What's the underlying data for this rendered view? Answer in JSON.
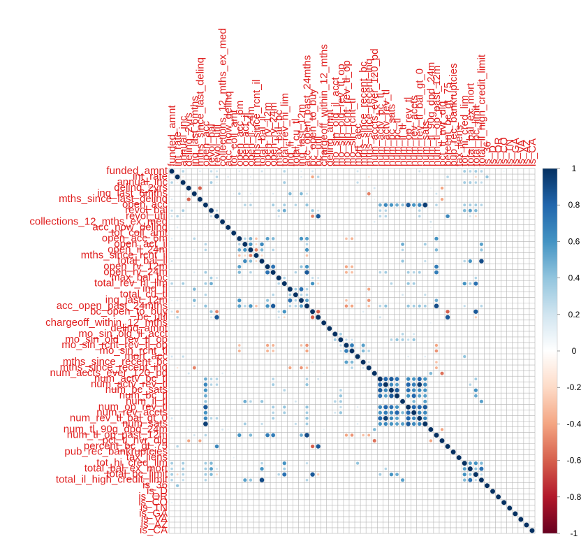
{
  "chart_data": {
    "type": "heatmap",
    "title": "",
    "variables": [
      "funded_amnt",
      "int_rate",
      "annual_inc",
      "delinq_2yrs",
      "inq_last_6mths",
      "mths_since_last_delinq",
      "open_acc",
      "revol_bal",
      "revol_util",
      "collections_12_mths_ex_med",
      "acc_now_delinq",
      "tot_coll_amt",
      "open_acc_6m",
      "open_act_il",
      "open_il_24m",
      "mths_since_rcnt_il",
      "total_bal_il",
      "open_rv_12m",
      "open_rv_24m",
      "max_bal_bc",
      "total_rev_hi_lim",
      "inq_fi",
      "total_cu_tl",
      "inq_last_12m",
      "acc_open_past_24mths",
      "bc_open_to_buy",
      "bc_util",
      "chargeoff_within_12_mths",
      "delinq_amnt",
      "mo_sin_old_il_acct",
      "mo_sin_old_rev_tl_op",
      "mo_sin_rcnt_rev_tl_op",
      "mo_sin_rcnt_tl",
      "mort_acc",
      "mths_since_recent_bc",
      "mths_since_recent_inq",
      "num_accts_ever_120_pd",
      "num_actv_bc_tl",
      "num_actv_rev_tl",
      "num_bc_sats",
      "num_bc_tl",
      "num_il_tl",
      "num_op_rev_tl",
      "num_rev_accts",
      "num_rev_tl_bal_gt_0",
      "num_sats",
      "num_tl_90g_dpd_24m",
      "num_tl_op_past_12m",
      "pct_tl_nvr_dlq",
      "percent_bc_gt_75",
      "pub_rec_bankruptcies",
      "tax_liens",
      "tot_hi_cred_lim",
      "total_bal_ex_mort",
      "total_bc_limit",
      "total_il_high_credit_limit",
      "is_36",
      "is_D",
      "is_OR",
      "is_CO",
      "is_TN",
      "is_GA",
      "is_VA",
      "is_AZ",
      "is_CA"
    ],
    "color_scale": {
      "min": -1,
      "max": 1,
      "ticks": [
        "1",
        "0.8",
        "0.6",
        "0.4",
        "0.2",
        "0",
        "-0.2",
        "-0.4",
        "-0.6",
        "-0.8",
        "-1"
      ],
      "colors": [
        "#67001f",
        "#b2182b",
        "#d6604d",
        "#f4a582",
        "#fddbc7",
        "#ffffff",
        "#d1e5f0",
        "#92c5de",
        "#4393c3",
        "#2166ac",
        "#053061"
      ]
    },
    "pairs": [
      [
        0,
        5,
        0.15
      ],
      [
        0,
        2,
        0.3
      ],
      [
        0,
        7,
        0.25
      ],
      [
        0,
        8,
        0.2
      ],
      [
        0,
        12,
        0.15
      ],
      [
        0,
        16,
        0.2
      ],
      [
        0,
        20,
        0.3
      ],
      [
        0,
        23,
        0.12
      ],
      [
        0,
        25,
        0.2
      ],
      [
        0,
        33,
        0.2
      ],
      [
        0,
        44,
        0.2
      ],
      [
        0,
        52,
        0.35
      ],
      [
        0,
        53,
        0.3
      ],
      [
        0,
        54,
        0.35
      ],
      [
        0,
        55,
        0.3
      ],
      [
        0,
        59,
        0.1
      ],
      [
        1,
        2,
        -0.1
      ],
      [
        1,
        8,
        0.3
      ],
      [
        1,
        10,
        0.15
      ],
      [
        1,
        14,
        0.1
      ],
      [
        1,
        23,
        0.15
      ],
      [
        1,
        25,
        -0.4
      ],
      [
        1,
        26,
        0.3
      ],
      [
        1,
        35,
        -0.15
      ],
      [
        1,
        49,
        0.3
      ],
      [
        1,
        54,
        -0.2
      ],
      [
        1,
        56,
        0.4
      ],
      [
        2,
        7,
        0.35
      ],
      [
        2,
        8,
        0.1
      ],
      [
        2,
        20,
        0.35
      ],
      [
        2,
        33,
        0.25
      ],
      [
        2,
        52,
        0.35
      ],
      [
        2,
        53,
        0.35
      ],
      [
        2,
        54,
        0.3
      ],
      [
        2,
        55,
        0.25
      ],
      [
        3,
        5,
        -0.6
      ],
      [
        3,
        46,
        0.1
      ],
      [
        3,
        48,
        -0.4
      ],
      [
        3,
        36,
        0.2
      ],
      [
        4,
        11,
        0.1
      ],
      [
        4,
        12,
        0.3
      ],
      [
        4,
        14,
        0.15
      ],
      [
        4,
        18,
        0.15
      ],
      [
        4,
        23,
        0.45
      ],
      [
        4,
        24,
        0.2
      ],
      [
        4,
        35,
        -0.5
      ],
      [
        4,
        47,
        0.2
      ],
      [
        4,
        21,
        0.45
      ],
      [
        5,
        36,
        0.1
      ],
      [
        5,
        46,
        0.05
      ],
      [
        5,
        48,
        -0.4
      ],
      [
        6,
        10,
        0.05
      ],
      [
        6,
        13,
        0.3
      ],
      [
        6,
        14,
        0.3
      ],
      [
        6,
        18,
        0.35
      ],
      [
        6,
        20,
        0.35
      ],
      [
        6,
        22,
        0.3
      ],
      [
        6,
        24,
        0.4
      ],
      [
        6,
        37,
        0.5
      ],
      [
        6,
        38,
        0.65
      ],
      [
        6,
        39,
        0.6
      ],
      [
        6,
        40,
        0.5
      ],
      [
        6,
        41,
        0.4
      ],
      [
        6,
        42,
        0.85
      ],
      [
        6,
        43,
        0.6
      ],
      [
        6,
        44,
        0.65
      ],
      [
        6,
        45,
        0.95
      ],
      [
        6,
        47,
        0.3
      ],
      [
        6,
        52,
        0.35
      ],
      [
        6,
        53,
        0.35
      ],
      [
        6,
        54,
        0.35
      ],
      [
        6,
        55,
        0.3
      ],
      [
        7,
        8,
        0.25
      ],
      [
        7,
        19,
        0.35
      ],
      [
        7,
        20,
        0.5
      ],
      [
        7,
        25,
        0.4
      ],
      [
        7,
        26,
        0.2
      ],
      [
        7,
        37,
        0.3
      ],
      [
        7,
        38,
        0.3
      ],
      [
        7,
        44,
        0.3
      ],
      [
        7,
        52,
        0.45
      ],
      [
        7,
        53,
        0.55
      ],
      [
        7,
        54,
        0.45
      ],
      [
        8,
        19,
        0.2
      ],
      [
        8,
        25,
        -0.5
      ],
      [
        8,
        26,
        0.85
      ],
      [
        8,
        37,
        0.3
      ],
      [
        8,
        38,
        0.3
      ],
      [
        8,
        44,
        0.3
      ],
      [
        8,
        49,
        0.65
      ],
      [
        8,
        54,
        -0.2
      ],
      [
        8,
        53,
        0.2
      ],
      [
        9,
        36,
        0.15
      ],
      [
        9,
        46,
        0.2
      ],
      [
        9,
        10,
        0.1
      ],
      [
        10,
        24,
        0.05
      ],
      [
        10,
        46,
        0.1
      ],
      [
        11,
        24,
        0.05
      ],
      [
        11,
        36,
        0.1
      ],
      [
        11,
        51,
        0.1
      ],
      [
        12,
        13,
        0.3
      ],
      [
        12,
        14,
        0.5
      ],
      [
        12,
        17,
        0.55
      ],
      [
        12,
        18,
        0.45
      ],
      [
        12,
        23,
        0.6
      ],
      [
        12,
        24,
        0.55
      ],
      [
        12,
        31,
        -0.3
      ],
      [
        12,
        32,
        -0.35
      ],
      [
        12,
        47,
        0.6
      ],
      [
        12,
        15,
        -0.3
      ],
      [
        13,
        14,
        0.6
      ],
      [
        13,
        15,
        -0.2
      ],
      [
        13,
        16,
        0.65
      ],
      [
        13,
        24,
        0.3
      ],
      [
        13,
        41,
        0.5
      ],
      [
        13,
        45,
        0.35
      ],
      [
        13,
        55,
        0.55
      ],
      [
        14,
        15,
        -0.5
      ],
      [
        14,
        16,
        0.45
      ],
      [
        14,
        18,
        0.3
      ],
      [
        14,
        24,
        0.6
      ],
      [
        14,
        41,
        0.3
      ],
      [
        14,
        47,
        0.45
      ],
      [
        14,
        55,
        0.4
      ],
      [
        15,
        16,
        -0.2
      ],
      [
        15,
        24,
        -0.3
      ],
      [
        16,
        41,
        0.4
      ],
      [
        16,
        45,
        0.25
      ],
      [
        16,
        53,
        0.6
      ],
      [
        16,
        55,
        0.9
      ],
      [
        16,
        52,
        0.3
      ],
      [
        17,
        18,
        0.75
      ],
      [
        17,
        23,
        0.4
      ],
      [
        17,
        24,
        0.6
      ],
      [
        17,
        31,
        -0.4
      ],
      [
        17,
        32,
        -0.35
      ],
      [
        17,
        47,
        0.7
      ],
      [
        18,
        24,
        0.85
      ],
      [
        18,
        31,
        -0.35
      ],
      [
        18,
        32,
        -0.3
      ],
      [
        18,
        37,
        0.3
      ],
      [
        18,
        38,
        0.35
      ],
      [
        18,
        42,
        0.35
      ],
      [
        18,
        43,
        0.3
      ],
      [
        18,
        44,
        0.35
      ],
      [
        18,
        47,
        0.7
      ],
      [
        18,
        22,
        0.3
      ],
      [
        19,
        20,
        0.3
      ],
      [
        19,
        25,
        0.25
      ],
      [
        19,
        26,
        0.2
      ],
      [
        19,
        54,
        0.3
      ],
      [
        20,
        25,
        0.6
      ],
      [
        20,
        26,
        -0.2
      ],
      [
        20,
        39,
        0.3
      ],
      [
        20,
        42,
        0.4
      ],
      [
        20,
        43,
        0.35
      ],
      [
        20,
        52,
        0.6
      ],
      [
        20,
        53,
        0.35
      ],
      [
        20,
        54,
        0.75
      ],
      [
        21,
        22,
        0.35
      ],
      [
        21,
        23,
        0.75
      ],
      [
        21,
        24,
        0.3
      ],
      [
        21,
        35,
        -0.4
      ],
      [
        22,
        23,
        0.3
      ],
      [
        22,
        24,
        0.3
      ],
      [
        22,
        41,
        0.2
      ],
      [
        22,
        45,
        0.25
      ],
      [
        23,
        24,
        0.55
      ],
      [
        23,
        31,
        -0.3
      ],
      [
        23,
        35,
        -0.45
      ],
      [
        23,
        47,
        0.5
      ],
      [
        24,
        31,
        -0.45
      ],
      [
        24,
        32,
        -0.4
      ],
      [
        24,
        35,
        -0.3
      ],
      [
        24,
        37,
        0.3
      ],
      [
        24,
        38,
        0.4
      ],
      [
        24,
        42,
        0.4
      ],
      [
        24,
        43,
        0.35
      ],
      [
        24,
        44,
        0.4
      ],
      [
        24,
        45,
        0.35
      ],
      [
        24,
        47,
        0.9
      ],
      [
        24,
        52,
        0.25
      ],
      [
        24,
        55,
        0.3
      ],
      [
        25,
        26,
        -0.6
      ],
      [
        25,
        34,
        0.15
      ],
      [
        25,
        49,
        -0.6
      ],
      [
        25,
        54,
        0.85
      ],
      [
        26,
        37,
        0.2
      ],
      [
        26,
        49,
        0.85
      ],
      [
        26,
        54,
        -0.25
      ],
      [
        27,
        46,
        0.1
      ],
      [
        27,
        36,
        0.1
      ],
      [
        28,
        46,
        0.05
      ],
      [
        29,
        30,
        0.35
      ],
      [
        29,
        41,
        0.3
      ],
      [
        29,
        43,
        0.2
      ],
      [
        30,
        31,
        0.25
      ],
      [
        30,
        32,
        0.2
      ],
      [
        30,
        39,
        0.3
      ],
      [
        30,
        40,
        0.4
      ],
      [
        30,
        41,
        0.35
      ],
      [
        30,
        42,
        0.25
      ],
      [
        30,
        43,
        0.4
      ],
      [
        31,
        32,
        0.7
      ],
      [
        31,
        34,
        0.55
      ],
      [
        31,
        47,
        -0.4
      ],
      [
        32,
        34,
        0.45
      ],
      [
        32,
        47,
        -0.45
      ],
      [
        32,
        35,
        0.3
      ],
      [
        33,
        52,
        0.4
      ],
      [
        33,
        42,
        0.15
      ],
      [
        33,
        45,
        0.15
      ],
      [
        34,
        35,
        0.2
      ],
      [
        34,
        47,
        -0.3
      ],
      [
        35,
        47,
        -0.35
      ],
      [
        36,
        46,
        0.45
      ],
      [
        36,
        48,
        -0.55
      ],
      [
        37,
        38,
        0.8
      ],
      [
        37,
        39,
        0.85
      ],
      [
        37,
        40,
        0.75
      ],
      [
        37,
        42,
        0.65
      ],
      [
        37,
        43,
        0.6
      ],
      [
        37,
        44,
        0.8
      ],
      [
        37,
        45,
        0.6
      ],
      [
        37,
        54,
        0.35
      ],
      [
        38,
        39,
        0.65
      ],
      [
        38,
        40,
        0.55
      ],
      [
        38,
        42,
        0.8
      ],
      [
        38,
        43,
        0.7
      ],
      [
        38,
        44,
        0.95
      ],
      [
        38,
        45,
        0.65
      ],
      [
        38,
        53,
        0.3
      ],
      [
        39,
        40,
        0.85
      ],
      [
        39,
        42,
        0.75
      ],
      [
        39,
        43,
        0.65
      ],
      [
        39,
        44,
        0.65
      ],
      [
        39,
        45,
        0.6
      ],
      [
        39,
        54,
        0.6
      ],
      [
        40,
        42,
        0.6
      ],
      [
        40,
        43,
        0.8
      ],
      [
        40,
        44,
        0.55
      ],
      [
        40,
        45,
        0.55
      ],
      [
        40,
        54,
        0.5
      ],
      [
        41,
        43,
        0.45
      ],
      [
        41,
        45,
        0.55
      ],
      [
        41,
        55,
        0.55
      ],
      [
        42,
        43,
        0.8
      ],
      [
        42,
        44,
        0.8
      ],
      [
        42,
        45,
        0.85
      ],
      [
        43,
        44,
        0.65
      ],
      [
        43,
        45,
        0.65
      ],
      [
        44,
        45,
        0.65
      ],
      [
        46,
        48,
        -0.4
      ],
      [
        48,
        49,
        -0.1
      ],
      [
        50,
        51,
        0.1
      ],
      [
        52,
        53,
        0.55
      ],
      [
        52,
        54,
        0.6
      ],
      [
        52,
        55,
        0.45
      ],
      [
        53,
        54,
        0.4
      ],
      [
        53,
        55,
        0.75
      ],
      [
        54,
        55,
        0.25
      ]
    ]
  }
}
